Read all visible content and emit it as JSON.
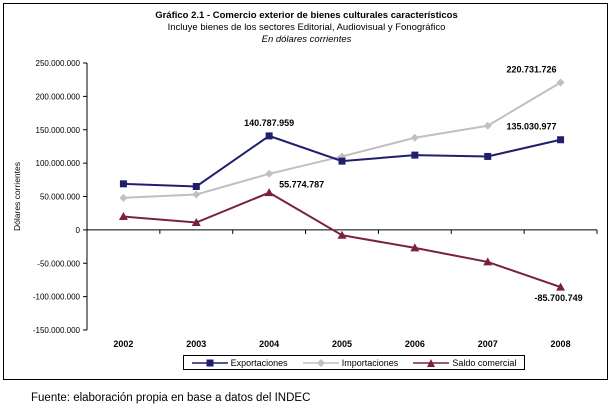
{
  "chart_data": {
    "type": "line",
    "title": "Gráfico 2.1 - Comercio exterior de bienes culturales característicos",
    "subtitle": "Incluye bienes de los sectores Editorial, Audiovisual y Fonográfico",
    "subtitle2": "En dólares corrientes",
    "ylabel": "Dólares corrientes",
    "xlabel": "",
    "categories": [
      "2002",
      "2003",
      "2004",
      "2005",
      "2006",
      "2007",
      "2008"
    ],
    "ylim": [
      -150000000,
      250000000
    ],
    "yticks": [
      250000000,
      200000000,
      150000000,
      100000000,
      50000000,
      0,
      -50000000,
      -100000000,
      -150000000
    ],
    "ytick_labels": [
      "250.000.000",
      "200.000.000",
      "150.000.000",
      "100.000.000",
      "50.000.000",
      "0",
      "-50.000.000",
      "-100.000.000",
      "-150.000.000"
    ],
    "grid": false,
    "legend_position": "bottom",
    "series": [
      {
        "name": "Exportaciones",
        "color": "#1f1f6e",
        "marker": "square",
        "values": [
          69000000,
          65000000,
          140787959,
          103000000,
          112000000,
          110000000,
          135030977
        ]
      },
      {
        "name": "Importaciones",
        "color": "#c0c0c0",
        "marker": "diamond",
        "values": [
          48000000,
          53000000,
          84000000,
          110000000,
          138000000,
          156000000,
          220731726
        ]
      },
      {
        "name": "Saldo comercial",
        "color": "#7a2040",
        "marker": "triangle",
        "values": [
          20000000,
          11000000,
          55774787,
          -8000000,
          -27000000,
          -48000000,
          -85700749
        ]
      }
    ],
    "annotations": [
      {
        "text": "140.787.959",
        "series": 0,
        "index": 2
      },
      {
        "text": "55.774.787",
        "series": 2,
        "index": 2
      },
      {
        "text": "220.731.726",
        "series": 1,
        "index": 6
      },
      {
        "text": "135.030.977",
        "series": 0,
        "index": 6
      },
      {
        "text": "-85.700.749",
        "series": 2,
        "index": 6
      }
    ]
  },
  "source": "Fuente: elaboración propia en base a datos del INDEC"
}
